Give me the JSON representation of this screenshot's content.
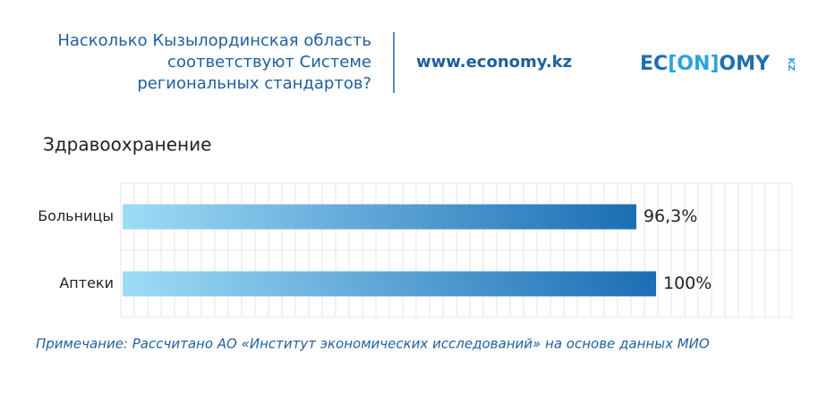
{
  "header": {
    "title": [
      "Насколько Кызылординская область",
      "соответствуют Системе",
      "региональных стандартов?"
    ],
    "site": "www.economy.kz",
    "logo": [
      "EC",
      "[ON]",
      "OMY",
      "KZ"
    ]
  },
  "chart_data": {
    "type": "bar",
    "orientation": "horizontal",
    "subtitle": "Здравоохранение",
    "categories": [
      "Больницы",
      "Аптеки"
    ],
    "values": [
      96.3,
      100
    ],
    "value_labels": [
      "96,3%",
      "100%"
    ],
    "gradient": [
      "#9edcf6",
      "#1c6db5"
    ],
    "grid": true
  },
  "note": "Примечание: Рассчитано АО «Институт экономических исследований» на основе данных МИО"
}
